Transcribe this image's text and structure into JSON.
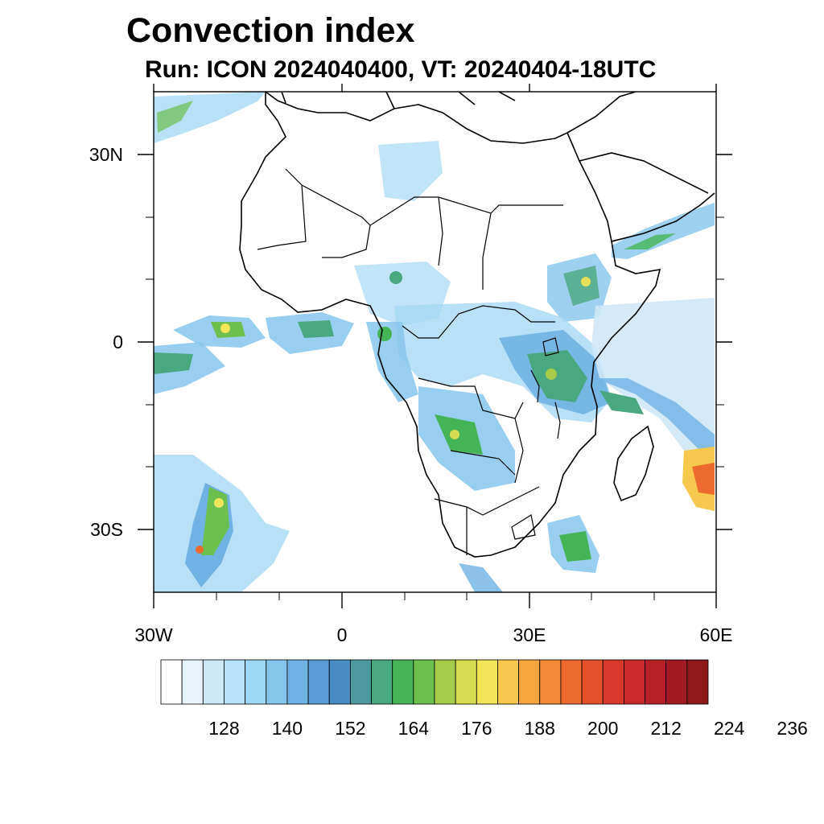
{
  "title": "Convection index",
  "subtitle": "Run: ICON 2024040400,  VT: 20240404-18UTC",
  "map": {
    "region": "Africa",
    "lon_range": [
      -30,
      60
    ],
    "lat_range": [
      -40,
      40
    ],
    "lon_ticks": [
      {
        "value": -30,
        "label": "30W"
      },
      {
        "value": 0,
        "label": "0"
      },
      {
        "value": 30,
        "label": "30E"
      },
      {
        "value": 60,
        "label": "60E"
      }
    ],
    "lat_ticks": [
      {
        "value": 30,
        "label": "30N"
      },
      {
        "value": 0,
        "label": "0"
      },
      {
        "value": -30,
        "label": "30S"
      }
    ],
    "minor_lon_ticks": [
      -20,
      -10,
      10,
      20,
      40,
      50
    ],
    "minor_lat_ticks": [
      20,
      10,
      -10,
      -20
    ]
  },
  "colorbar": {
    "labels": [
      "128",
      "140",
      "152",
      "164",
      "176",
      "188",
      "200",
      "212",
      "224",
      "236"
    ],
    "colors": [
      "#ffffff",
      "#e8f4fb",
      "#cfe8f7",
      "#b8e0f6",
      "#9ed6f5",
      "#86c6ec",
      "#6fb2e3",
      "#5a9bd5",
      "#4a8cc4",
      "#4c9aa0",
      "#4aa880",
      "#45b456",
      "#6cc04e",
      "#a6cc4c",
      "#d6dc50",
      "#f2e65a",
      "#f6c84e",
      "#f7a53e",
      "#f38a35",
      "#ec6a2e",
      "#e4502a",
      "#d93a2b",
      "#c92a2a",
      "#b61f26",
      "#a11a22",
      "#8e1719"
    ]
  },
  "colors": {
    "coast": "#000000",
    "light_blue": "#a6d8f5",
    "mid_blue": "#6fb2e3",
    "green": "#4aa880",
    "yellow": "#e8e05a",
    "orange": "#f39a3a",
    "red": "#d93a2b"
  }
}
